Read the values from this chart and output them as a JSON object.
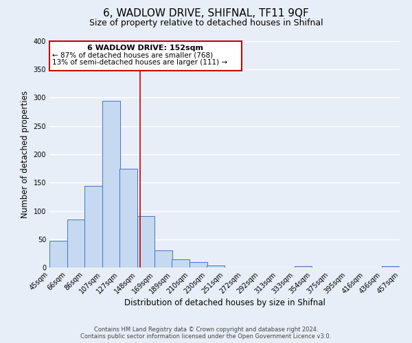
{
  "title": "6, WADLOW DRIVE, SHIFNAL, TF11 9QF",
  "subtitle": "Size of property relative to detached houses in Shifnal",
  "xlabel": "Distribution of detached houses by size in Shifnal",
  "ylabel": "Number of detached properties",
  "footnote1": "Contains HM Land Registry data © Crown copyright and database right 2024.",
  "footnote2": "Contains public sector information licensed under the Open Government Licence v3.0.",
  "bar_left_edges": [
    45,
    66,
    86,
    107,
    127,
    148,
    169,
    189,
    210,
    230,
    251,
    272,
    292,
    313,
    333,
    354,
    375,
    395,
    416,
    436
  ],
  "bar_heights": [
    47,
    85,
    144,
    294,
    175,
    91,
    30,
    14,
    10,
    4,
    0,
    0,
    0,
    0,
    3,
    0,
    0,
    0,
    0,
    3
  ],
  "bin_width": 21,
  "tick_labels": [
    "45sqm",
    "66sqm",
    "86sqm",
    "107sqm",
    "127sqm",
    "148sqm",
    "169sqm",
    "189sqm",
    "210sqm",
    "230sqm",
    "251sqm",
    "272sqm",
    "292sqm",
    "313sqm",
    "333sqm",
    "354sqm",
    "375sqm",
    "395sqm",
    "416sqm",
    "436sqm",
    "457sqm"
  ],
  "bar_color": "#c5d9f0",
  "bar_edge_color": "#4472c4",
  "property_line_x": 152,
  "property_line_color": "#cc0000",
  "annotation_box_color": "#cc0000",
  "annotation_text_line1": "6 WADLOW DRIVE: 152sqm",
  "annotation_text_line2": "← 87% of detached houses are smaller (768)",
  "annotation_text_line3": "13% of semi-detached houses are larger (111) →",
  "ylim": [
    0,
    400
  ],
  "yticks": [
    0,
    50,
    100,
    150,
    200,
    250,
    300,
    350,
    400
  ],
  "bg_color": "#e8eef8",
  "grid_color": "#ffffff",
  "title_fontsize": 11,
  "subtitle_fontsize": 9,
  "tick_fontsize": 7,
  "label_fontsize": 8.5
}
